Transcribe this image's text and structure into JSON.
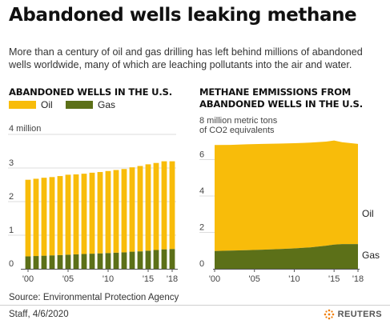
{
  "title": "Abandoned wells leaking methane",
  "subtitle": "More than a century of oil and gas drilling has left behind millions of abandoned wells worldwide, many of which are leaching pollutants into the air and water.",
  "colors": {
    "oil": "#f8bc0a",
    "gas": "#5c7018",
    "grid": "#dddddd",
    "axis": "#555555"
  },
  "legend": {
    "oil": "Oil",
    "gas": "Gas"
  },
  "chart_data": [
    {
      "type": "bar",
      "stacked": true,
      "title": "ABANDONED WELLS IN THE U.S.",
      "unit_label": "4 million",
      "x": [
        2000,
        2001,
        2002,
        2003,
        2004,
        2005,
        2006,
        2007,
        2008,
        2009,
        2010,
        2011,
        2012,
        2013,
        2014,
        2015,
        2016,
        2017,
        2018
      ],
      "x_tick_labels": [
        "'00",
        "'05",
        "'10",
        "'15",
        "'18"
      ],
      "x_tick_values": [
        2000,
        2005,
        2010,
        2015,
        2018
      ],
      "ylim": [
        0,
        4
      ],
      "y_ticks": [
        0,
        1,
        2,
        3
      ],
      "series": [
        {
          "name": "Gas",
          "values": [
            0.37,
            0.38,
            0.39,
            0.4,
            0.41,
            0.42,
            0.43,
            0.44,
            0.45,
            0.46,
            0.47,
            0.48,
            0.49,
            0.51,
            0.52,
            0.54,
            0.56,
            0.58,
            0.59
          ]
        },
        {
          "name": "Oil",
          "values": [
            2.28,
            2.3,
            2.32,
            2.33,
            2.35,
            2.38,
            2.38,
            2.39,
            2.41,
            2.42,
            2.44,
            2.46,
            2.48,
            2.51,
            2.54,
            2.57,
            2.59,
            2.62,
            2.61
          ]
        }
      ],
      "grid": true
    },
    {
      "type": "area",
      "stacked": true,
      "title": "METHANE EMMISSIONS FROM ABANDONED WELLS IN THE U.S.",
      "unit_label": [
        "8 million metric tons",
        "of CO2 equivalents"
      ],
      "x": [
        2000,
        2002,
        2004,
        2006,
        2008,
        2010,
        2012,
        2014,
        2015,
        2016,
        2018
      ],
      "x_tick_labels": [
        "'00",
        "'05",
        "'10",
        "'15",
        "'18"
      ],
      "x_tick_values": [
        2000,
        2005,
        2010,
        2015,
        2018
      ],
      "ylim": [
        0,
        8
      ],
      "y_ticks": [
        0,
        2,
        4,
        6
      ],
      "series": [
        {
          "name": "Gas",
          "values": [
            0.98,
            1.0,
            1.02,
            1.05,
            1.08,
            1.12,
            1.18,
            1.27,
            1.33,
            1.36,
            1.36
          ]
        },
        {
          "name": "Oil",
          "values": [
            5.82,
            5.81,
            5.82,
            5.81,
            5.8,
            5.78,
            5.75,
            5.72,
            5.72,
            5.6,
            5.5
          ]
        }
      ],
      "series_labels": {
        "oil": "Oil",
        "gas": "Gas"
      },
      "grid": true
    }
  ],
  "source": "Source: Environmental Protection Agency",
  "credit": "Staff, 4/6/2020",
  "brand": "REUTERS"
}
